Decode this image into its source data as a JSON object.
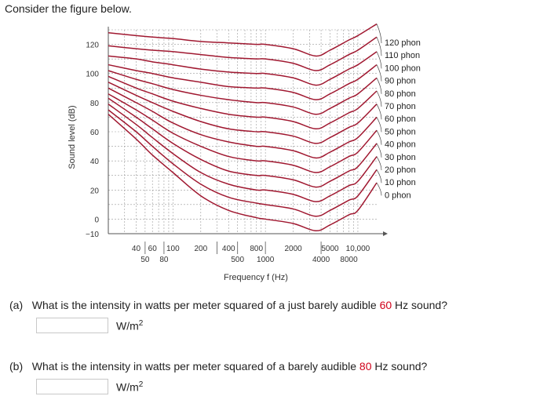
{
  "intro": "Consider the figure below.",
  "chart_data": {
    "type": "line",
    "title": "",
    "xlabel": "Frequency f (Hz)",
    "ylabel": "Sound level (dB)",
    "xscale": "log",
    "xlim": [
      20,
      16000
    ],
    "ylim": [
      -10,
      130
    ],
    "y_ticks": [
      "120",
      "100",
      "80",
      "60",
      "40",
      "20",
      "0",
      "−10"
    ],
    "y_tick_values": [
      120,
      100,
      80,
      60,
      40,
      20,
      0,
      -10
    ],
    "x_ticks_upper": [
      "40",
      "60",
      "100",
      "200",
      "400",
      "800",
      "2000",
      "5000",
      "10,000"
    ],
    "x_ticks_upper_values": [
      40,
      60,
      100,
      200,
      400,
      800,
      2000,
      5000,
      10000
    ],
    "x_ticks_lower": [
      "50",
      "80",
      "500",
      "1000",
      "4000",
      "8000"
    ],
    "x_ticks_lower_values": [
      50,
      80,
      500,
      1000,
      4000,
      8000
    ],
    "grid": true,
    "line_color": "#a01830",
    "x": [
      20,
      40,
      60,
      100,
      200,
      400,
      800,
      1000,
      2000,
      3500,
      5000,
      8000,
      10000,
      16000
    ],
    "series": [
      {
        "name": "120 phon",
        "values": [
          128,
          126,
          125,
          124,
          122,
          121,
          120,
          120,
          117,
          112,
          116,
          123,
          126,
          134
        ]
      },
      {
        "name": "110 phon",
        "values": [
          119,
          117,
          116,
          115,
          113,
          111,
          110,
          110,
          107,
          102,
          106,
          113,
          116,
          125
        ]
      },
      {
        "name": "100 phon",
        "values": [
          112,
          110,
          108,
          106,
          103,
          101,
          100,
          100,
          97,
          92,
          96,
          103,
          106,
          115
        ]
      },
      {
        "name": "90 phon",
        "values": [
          106,
          102,
          100,
          97,
          94,
          91,
          90,
          90,
          87,
          82,
          86,
          93,
          96,
          106
        ]
      },
      {
        "name": "80 phon",
        "values": [
          102,
          96,
          93,
          89,
          85,
          82,
          80,
          80,
          77,
          72,
          76,
          83,
          86,
          97
        ]
      },
      {
        "name": "70 phon",
        "values": [
          98,
          90,
          86,
          81,
          76,
          72,
          70,
          70,
          67,
          62,
          66,
          73,
          76,
          88
        ]
      },
      {
        "name": "60 phon",
        "values": [
          94,
          85,
          80,
          74,
          67,
          62,
          60,
          60,
          57,
          52,
          56,
          63,
          66,
          79
        ]
      },
      {
        "name": "50 phon",
        "values": [
          90,
          80,
          74,
          66,
          58,
          53,
          50,
          50,
          47,
          42,
          46,
          53,
          56,
          70
        ]
      },
      {
        "name": "40 phon",
        "values": [
          86,
          75,
          68,
          59,
          50,
          43,
          40,
          40,
          37,
          32,
          36,
          43,
          46,
          61
        ]
      },
      {
        "name": "30 phon",
        "values": [
          83,
          70,
          62,
          52,
          41,
          33,
          30,
          30,
          27,
          22,
          26,
          33,
          36,
          52
        ]
      },
      {
        "name": "20 phon",
        "values": [
          79,
          65,
          56,
          45,
          32,
          24,
          20,
          20,
          17,
          12,
          16,
          23,
          26,
          43
        ]
      },
      {
        "name": "10 phon",
        "values": [
          75,
          60,
          50,
          38,
          24,
          15,
          11,
          10,
          7,
          2,
          6,
          13,
          16,
          34
        ]
      },
      {
        "name": "0 phon",
        "values": [
          72,
          55,
          44,
          32,
          16,
          6,
          1,
          0,
          -3,
          -8,
          -4,
          3,
          6,
          25
        ]
      }
    ]
  },
  "questions": [
    {
      "label": "(a)",
      "text_before": "What is the intensity in watts per meter squared of a just barely audible ",
      "highlight": "60",
      "text_after": " Hz sound?",
      "unit_base": "W/m",
      "unit_exp": "2",
      "value": ""
    },
    {
      "label": "(b)",
      "text_before": "What is the intensity in watts per meter squared of a barely audible ",
      "highlight": "80",
      "text_after": " Hz sound?",
      "unit_base": "W/m",
      "unit_exp": "2",
      "value": ""
    }
  ]
}
